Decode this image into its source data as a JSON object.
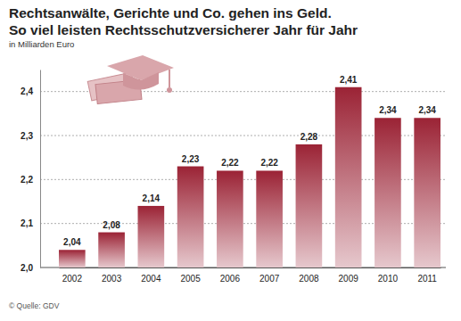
{
  "chart_data": {
    "type": "bar",
    "title": "Rechtsanwälte, Gerichte und Co. gehen ins Geld.",
    "subtitle": "So viel leisten Rechtsschutzversicherer Jahr für Jahr",
    "ylabel": "in Milliarden Euro",
    "source": "© Quelle: GDV",
    "categories": [
      "2002",
      "2003",
      "2004",
      "2005",
      "2006",
      "2007",
      "2008",
      "2009",
      "2010",
      "2011"
    ],
    "values": [
      2.04,
      2.08,
      2.14,
      2.23,
      2.22,
      2.22,
      2.28,
      2.41,
      2.34,
      2.34
    ],
    "value_labels": [
      "2,04",
      "2,08",
      "2,14",
      "2,23",
      "2,22",
      "2,22",
      "2,28",
      "2,41",
      "2,34",
      "2,34"
    ],
    "color": "#9b2335",
    "ylim": [
      2.0,
      2.45
    ],
    "yticks": [
      {
        "value": 2.0,
        "label": "2,0"
      },
      {
        "value": 2.1,
        "label": "2,1"
      },
      {
        "value": 2.2,
        "label": "2,2"
      },
      {
        "value": 2.3,
        "label": "2,3"
      },
      {
        "value": 2.4,
        "label": "2,4"
      }
    ],
    "grid": true,
    "data_labels": true
  }
}
